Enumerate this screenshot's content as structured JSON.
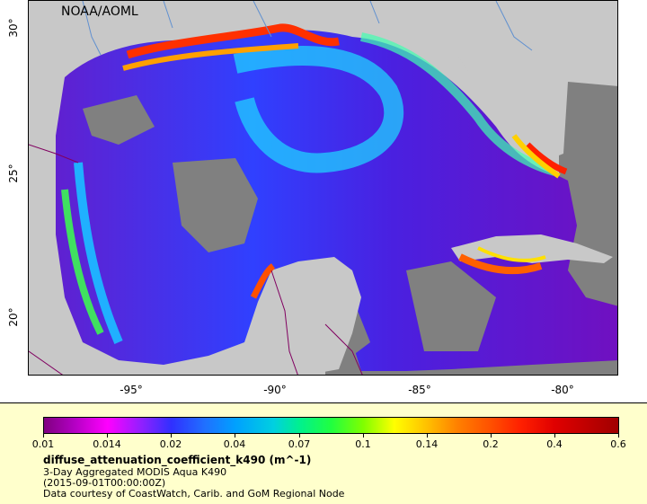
{
  "map": {
    "credit": "NOAA/AOML",
    "lat_ticks": [
      "30°",
      "25°",
      "20°"
    ],
    "lon_ticks": [
      "-95°",
      "-90°",
      "-85°",
      "-80°"
    ],
    "colors": {
      "land": "#c8c8c8",
      "no_data": "#808080",
      "low": "#8000a0",
      "mid": "#3050ff",
      "high": "#ff2000"
    }
  },
  "legend": {
    "colorbar_ticks": [
      "0.01",
      "0.014",
      "0.02",
      "0.04",
      "0.07",
      "0.1",
      "0.14",
      "0.2",
      "0.4",
      "0.6"
    ],
    "variable": "diffuse_attenuation_coefficient_k490 (m^-1)",
    "dataset": "3-Day Aggregated MODIS Aqua K490",
    "time": "(2015-09-01T00:00:00Z)",
    "courtesy": "Data courtesy of CoastWatch, Carib. and GoM Regional Node"
  }
}
